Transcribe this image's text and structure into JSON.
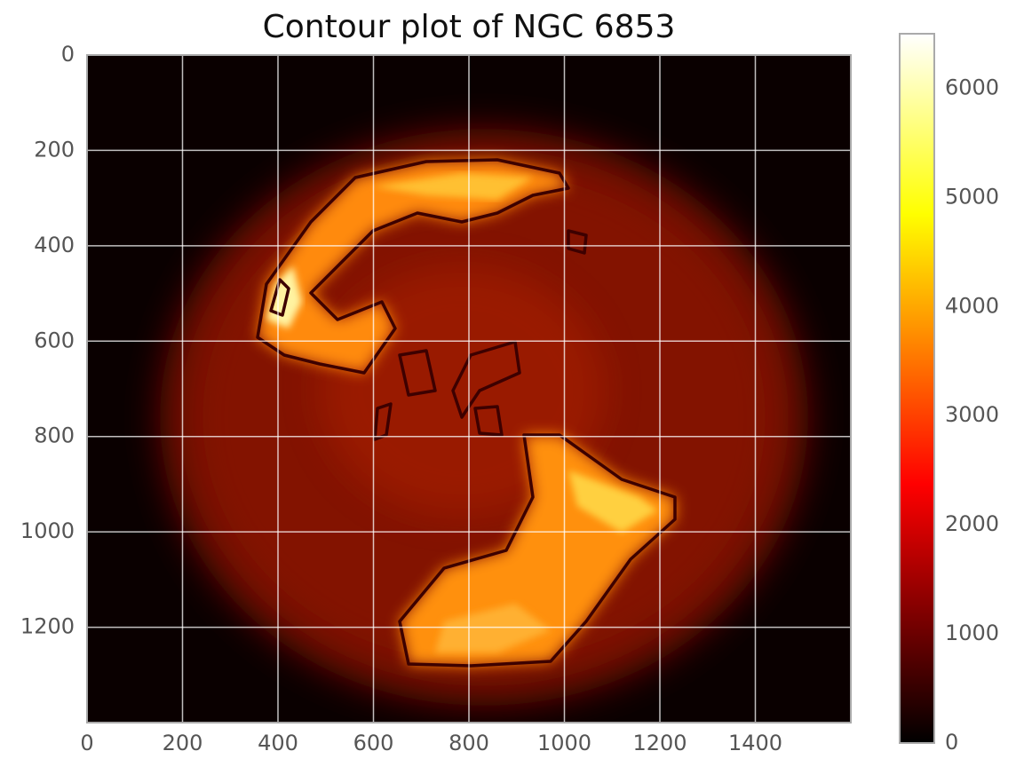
{
  "chart_data": {
    "type": "image",
    "title": "Contour plot of NGC 6853",
    "xlim": [
      0,
      1600
    ],
    "xticks": [
      0,
      200,
      400,
      600,
      800,
      1000,
      1200,
      1400
    ],
    "ylim": [
      1400,
      0
    ],
    "yticks": [
      0,
      200,
      400,
      600,
      800,
      1000,
      1200
    ],
    "grid": true,
    "colormap": "hot",
    "colorbar": {
      "lim": [
        0,
        6500
      ],
      "ticks": [
        0,
        1000,
        2000,
        3000,
        4000,
        5000,
        6000
      ]
    }
  }
}
